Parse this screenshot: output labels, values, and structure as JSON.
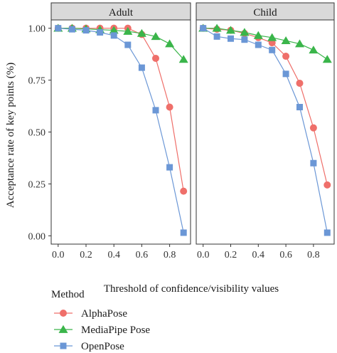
{
  "chart_data": {
    "type": "line",
    "xlabel": "Threshold of confidence/visibility values",
    "ylabel": "Acceptance rate of key points (%)",
    "xlim": [
      -0.05,
      0.95
    ],
    "ylim": [
      -0.04,
      1.04
    ],
    "x_ticks": [
      "0.0",
      "0.2",
      "0.4",
      "0.6",
      "0.8"
    ],
    "y_ticks": [
      "0.00",
      "0.25",
      "0.50",
      "0.75",
      "1.00"
    ],
    "grid": false,
    "legend": {
      "title": "Method",
      "position": "bottom-left",
      "entries": [
        "AlphaPose",
        "MediaPipe Pose",
        "OpenPose"
      ]
    },
    "colors": {
      "AlphaPose": "#ef6f6a",
      "MediaPipe Pose": "#3ab54a",
      "OpenPose": "#6b97d6",
      "strip_bg": "#d9d9d9",
      "panel_border": "#333333"
    },
    "x": [
      0.0,
      0.1,
      0.2,
      0.3,
      0.4,
      0.5,
      0.6,
      0.7,
      0.8,
      0.9
    ],
    "panels": [
      {
        "title": "Adult",
        "series": [
          {
            "name": "AlphaPose",
            "marker": "circle",
            "values": [
              1.0,
              1.0,
              1.0,
              1.0,
              1.0,
              1.0,
              0.97,
              0.855,
              0.62,
              0.215
            ]
          },
          {
            "name": "MediaPipe Pose",
            "marker": "triangle",
            "values": [
              1.0,
              1.0,
              0.997,
              0.993,
              0.99,
              0.985,
              0.975,
              0.96,
              0.925,
              0.85
            ]
          },
          {
            "name": "OpenPose",
            "marker": "square",
            "values": [
              1.0,
              0.995,
              0.99,
              0.98,
              0.965,
              0.92,
              0.81,
              0.605,
              0.33,
              0.015
            ]
          }
        ]
      },
      {
        "title": "Child",
        "series": [
          {
            "name": "AlphaPose",
            "marker": "circle",
            "values": [
              1.0,
              0.995,
              0.99,
              0.975,
              0.955,
              0.93,
              0.865,
              0.735,
              0.52,
              0.245
            ]
          },
          {
            "name": "MediaPipe Pose",
            "marker": "triangle",
            "values": [
              1.0,
              1.0,
              0.99,
              0.98,
              0.965,
              0.955,
              0.94,
              0.925,
              0.895,
              0.85
            ]
          },
          {
            "name": "OpenPose",
            "marker": "square",
            "values": [
              1.0,
              0.96,
              0.95,
              0.945,
              0.92,
              0.895,
              0.78,
              0.62,
              0.35,
              0.015
            ]
          }
        ]
      }
    ]
  }
}
